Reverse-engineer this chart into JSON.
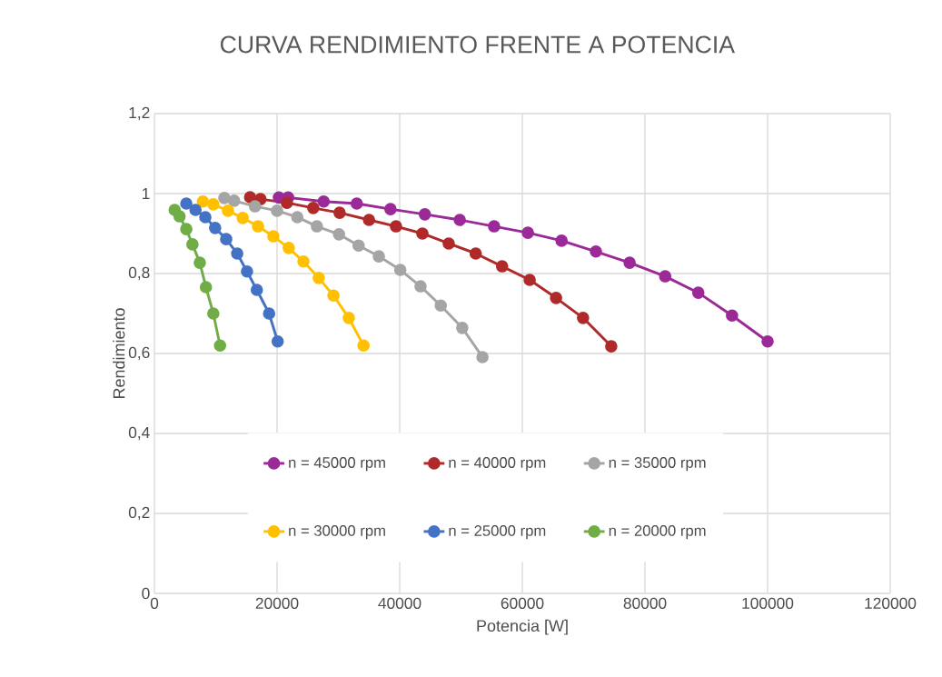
{
  "chart_data": {
    "type": "line",
    "title": "CURVA RENDIMIENTO FRENTE A POTENCIA",
    "xlabel": "Potencia [W]",
    "ylabel": "Rendimiento",
    "xlim": [
      0,
      120000
    ],
    "ylim": [
      0,
      1.2
    ],
    "xticks": [
      0,
      20000,
      40000,
      60000,
      80000,
      100000,
      120000
    ],
    "yticks": [
      0,
      {
        "value": 0.2,
        "label": "0,2"
      },
      {
        "value": 0.4,
        "label": "0,4"
      },
      {
        "value": 0.6,
        "label": "0,6"
      },
      {
        "value": 0.8,
        "label": "0,8"
      },
      1,
      {
        "value": 1.2,
        "label": "1,2"
      }
    ],
    "grid": true,
    "legend": "bottom",
    "marker": "circle",
    "line_style": "solid",
    "series": [
      {
        "name": "n = 45000 rpm",
        "color": "#9b2a98",
        "x": [
          20300,
          21800,
          27600,
          33000,
          38500,
          44100,
          49800,
          55400,
          60900,
          66400,
          72000,
          77500,
          83300,
          88700,
          94200,
          100000
        ],
        "values": [
          0.99,
          0.99,
          0.98,
          0.975,
          0.961,
          0.948,
          0.934,
          0.918,
          0.902,
          0.882,
          0.855,
          0.827,
          0.793,
          0.752,
          0.695,
          0.63
        ]
      },
      {
        "name": "n = 40000 rpm",
        "color": "#b02a2a",
        "x": [
          15600,
          17300,
          21600,
          25900,
          30200,
          35000,
          39400,
          43700,
          48000,
          52400,
          56700,
          61200,
          65500,
          69900,
          74500
        ],
        "values": [
          0.991,
          0.986,
          0.977,
          0.964,
          0.952,
          0.934,
          0.918,
          0.9,
          0.875,
          0.85,
          0.818,
          0.784,
          0.739,
          0.689,
          0.618
        ]
      },
      {
        "name": "n = 35000 rpm",
        "color": "#a5a5a5",
        "x": [
          11400,
          13000,
          16400,
          20000,
          23300,
          26500,
          30100,
          33300,
          36600,
          40100,
          43400,
          46700,
          50200,
          53500
        ],
        "values": [
          0.989,
          0.982,
          0.968,
          0.957,
          0.941,
          0.918,
          0.898,
          0.87,
          0.843,
          0.809,
          0.768,
          0.72,
          0.664,
          0.591
        ]
      },
      {
        "name": "n = 30000 rpm",
        "color": "#ffc000",
        "x": [
          7900,
          9600,
          12000,
          14400,
          16900,
          19400,
          21900,
          24300,
          26800,
          29200,
          31700,
          34100
        ],
        "values": [
          0.98,
          0.973,
          0.957,
          0.939,
          0.918,
          0.893,
          0.864,
          0.83,
          0.789,
          0.745,
          0.689,
          0.62
        ]
      },
      {
        "name": "n = 25000 rpm",
        "color": "#4472c4",
        "x": [
          5200,
          6700,
          8300,
          9900,
          11700,
          13500,
          15100,
          16700,
          18700,
          20100
        ],
        "values": [
          0.975,
          0.959,
          0.941,
          0.914,
          0.886,
          0.85,
          0.805,
          0.759,
          0.7,
          0.63
        ]
      },
      {
        "name": "n = 20000 rpm",
        "color": "#70ad47",
        "x": [
          3300,
          4100,
          5200,
          6200,
          7400,
          8400,
          9600,
          10700
        ],
        "values": [
          0.959,
          0.943,
          0.911,
          0.873,
          0.827,
          0.766,
          0.7,
          0.62
        ]
      }
    ]
  }
}
